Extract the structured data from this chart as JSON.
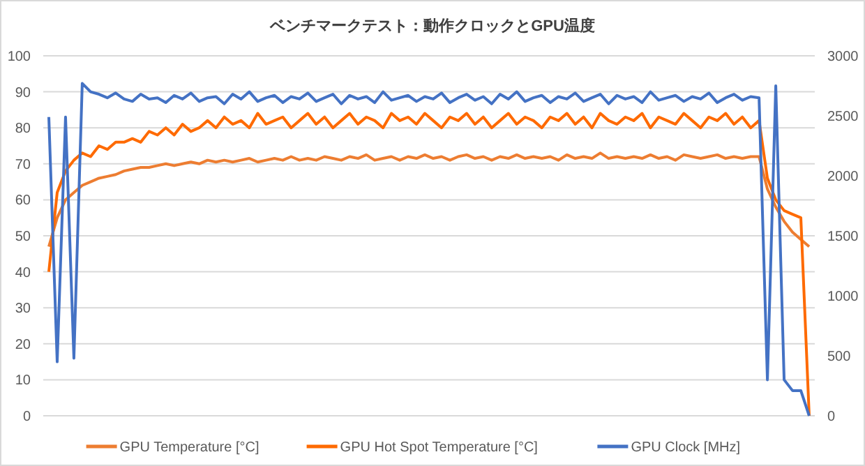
{
  "chart_data": {
    "type": "line",
    "title": "ベンチマークテスト：動作クロックとGPU温度",
    "categories": [
      null,
      null,
      null,
      null,
      null,
      null,
      null,
      null,
      null,
      null,
      null,
      null,
      null,
      null,
      null,
      null,
      null,
      null,
      null,
      null,
      null,
      null,
      null,
      null,
      null,
      null,
      null,
      null,
      null,
      null,
      null,
      null,
      null,
      null,
      null,
      null,
      null,
      null,
      null,
      null,
      null,
      null,
      null,
      null,
      null,
      null,
      null,
      null,
      null,
      null,
      null,
      null,
      null,
      null,
      null,
      null,
      null,
      null,
      null,
      null,
      null,
      null,
      null,
      null,
      null,
      null,
      null,
      null,
      null,
      null,
      null,
      null,
      null,
      null,
      null,
      null,
      null,
      null,
      null,
      null,
      null,
      null,
      null,
      null,
      null,
      null,
      null,
      null,
      null,
      null,
      null,
      null
    ],
    "ylim": [
      0,
      100
    ],
    "yticks": [
      0,
      10,
      20,
      30,
      40,
      50,
      60,
      70,
      80,
      90,
      100
    ],
    "y2lim": [
      0,
      3000
    ],
    "y2ticks": [
      0,
      500,
      1000,
      1500,
      2000,
      2500,
      3000
    ],
    "grid": "y",
    "legend": "bottom",
    "marker": "none",
    "line_style": "solid",
    "series": [
      {
        "name": "GPU Temperature [°C]",
        "color": "#ed7d31",
        "values": [
          47,
          55,
          60,
          62,
          64,
          65,
          66,
          66.5,
          67,
          68,
          68.5,
          69,
          69,
          69.5,
          70,
          69.5,
          70,
          70.5,
          70,
          71,
          70.5,
          71,
          70.5,
          71,
          71.5,
          70.5,
          71,
          71.5,
          71,
          72,
          71,
          71.5,
          71,
          72,
          71.5,
          71,
          72,
          71.5,
          72.5,
          71,
          71.5,
          72,
          71,
          72,
          71.5,
          72.5,
          71.5,
          72,
          71,
          72,
          72.5,
          71.5,
          72,
          71,
          72,
          71.5,
          72.5,
          71.5,
          72,
          71.5,
          72,
          71,
          72.5,
          71.5,
          72,
          71.5,
          73,
          71.5,
          72,
          71.5,
          72,
          71.5,
          72.5,
          71.5,
          72,
          71,
          72.5,
          72,
          71.5,
          72,
          72.5,
          71.5,
          72,
          71.5,
          72,
          72,
          63,
          58,
          54,
          51,
          49,
          47
        ]
      },
      {
        "name": "GPU Hot Spot Temperature [°C]",
        "color": "#fe6a00",
        "values": [
          40,
          62,
          68,
          71,
          73,
          72,
          75,
          74,
          76,
          76,
          77,
          76,
          79,
          78,
          80,
          78,
          81,
          79,
          80,
          82,
          80,
          83,
          81,
          82,
          80,
          84,
          81,
          82,
          83,
          80,
          82,
          84,
          81,
          83,
          80,
          82,
          84,
          81,
          83,
          82,
          80,
          84,
          82,
          83,
          81,
          84,
          82,
          80,
          83,
          82,
          84,
          81,
          83,
          80,
          82,
          84,
          81,
          83,
          82,
          80,
          83,
          82,
          84,
          81,
          83,
          80,
          84,
          82,
          81,
          83,
          82,
          84,
          80,
          83,
          82,
          81,
          84,
          82,
          80,
          83,
          82,
          84,
          81,
          83,
          80,
          82,
          66,
          60,
          57,
          56,
          55,
          0
        ]
      },
      {
        "name": "GPU Clock [MHz]",
        "color": "#4472c4",
        "axis": "y2",
        "values": [
          2490,
          450,
          2490,
          480,
          2770,
          2700,
          2680,
          2650,
          2690,
          2640,
          2620,
          2680,
          2640,
          2650,
          2610,
          2670,
          2640,
          2690,
          2620,
          2650,
          2660,
          2600,
          2680,
          2640,
          2700,
          2620,
          2650,
          2670,
          2610,
          2660,
          2640,
          2690,
          2620,
          2650,
          2680,
          2600,
          2670,
          2640,
          2660,
          2610,
          2700,
          2630,
          2650,
          2670,
          2620,
          2660,
          2640,
          2690,
          2610,
          2650,
          2680,
          2630,
          2660,
          2600,
          2680,
          2640,
          2700,
          2620,
          2650,
          2670,
          2610,
          2660,
          2640,
          2690,
          2620,
          2650,
          2680,
          2600,
          2670,
          2640,
          2660,
          2610,
          2700,
          2630,
          2650,
          2670,
          2620,
          2660,
          2640,
          2690,
          2610,
          2650,
          2680,
          2630,
          2660,
          2650,
          300,
          2750,
          300,
          210,
          210,
          0
        ]
      }
    ]
  }
}
